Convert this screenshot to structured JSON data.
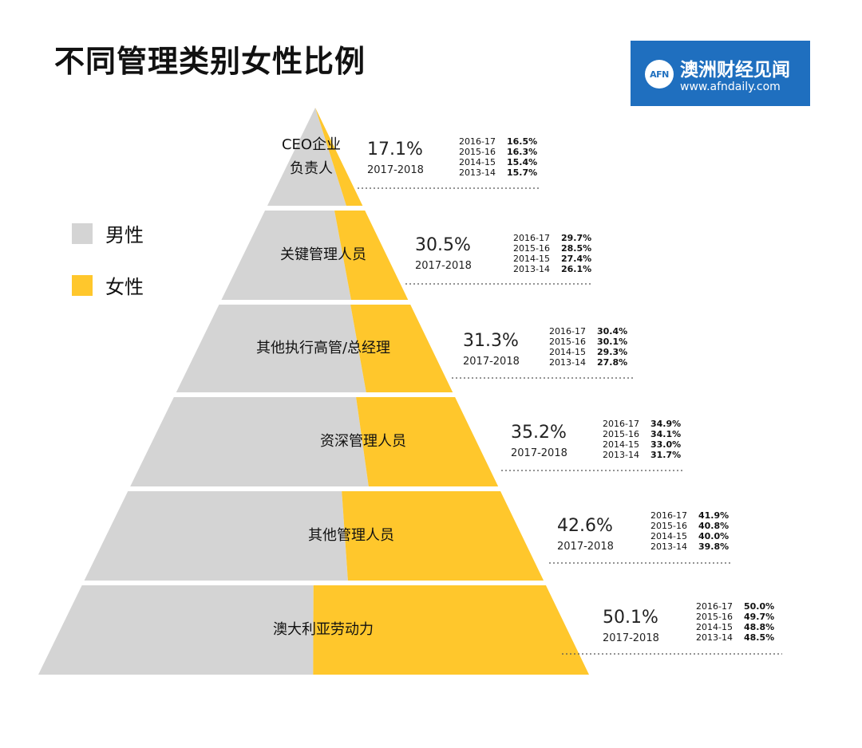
{
  "title": "不同管理类别女性比例",
  "logo": {
    "mark": "AFN",
    "name": "澳洲财经见闻",
    "url": "www.afndaily.com"
  },
  "colors": {
    "male": "#d4d4d4",
    "female": "#ffc72c"
  },
  "legend": [
    {
      "label": "男性",
      "color": "#d4d4d4"
    },
    {
      "label": "女性",
      "color": "#ffc72c"
    }
  ],
  "chart_data": {
    "type": "bar",
    "title": "不同管理类别女性比例",
    "series": [
      {
        "name": "女性",
        "values": [
          17.1,
          30.5,
          31.3,
          35.2,
          42.6,
          50.1
        ]
      }
    ],
    "current_year": "2017-2018",
    "levels": [
      {
        "label": "CEO企业\n负责人",
        "pct_label": "17.1%",
        "female_pct": 17.1,
        "year_label": "2017-2018",
        "history": [
          {
            "year": "2016-17",
            "value": "16.5%"
          },
          {
            "year": "2015-16",
            "value": "16.3%"
          },
          {
            "year": "2014-15",
            "value": "15.4%"
          },
          {
            "year": "2013-14",
            "value": "15.7%"
          }
        ]
      },
      {
        "label": "关键管理人员",
        "pct_label": "30.5%",
        "female_pct": 30.5,
        "year_label": "2017-2018",
        "history": [
          {
            "year": "2016-17",
            "value": "29.7%"
          },
          {
            "year": "2015-16",
            "value": "28.5%"
          },
          {
            "year": "2014-15",
            "value": "27.4%"
          },
          {
            "year": "2013-14",
            "value": "26.1%"
          }
        ]
      },
      {
        "label": "其他执行高管/总经理",
        "pct_label": "31.3%",
        "female_pct": 31.3,
        "year_label": "2017-2018",
        "history": [
          {
            "year": "2016-17",
            "value": "30.4%"
          },
          {
            "year": "2015-16",
            "value": "30.1%"
          },
          {
            "year": "2014-15",
            "value": "29.3%"
          },
          {
            "year": "2013-14",
            "value": "27.8%"
          }
        ]
      },
      {
        "label": "资深管理人员",
        "pct_label": "35.2%",
        "female_pct": 35.2,
        "year_label": "2017-2018",
        "history": [
          {
            "year": "2016-17",
            "value": "34.9%"
          },
          {
            "year": "2015-16",
            "value": "34.1%"
          },
          {
            "year": "2014-15",
            "value": "33.0%"
          },
          {
            "year": "2013-14",
            "value": "31.7%"
          }
        ]
      },
      {
        "label": "其他管理人员",
        "pct_label": "42.6%",
        "female_pct": 42.6,
        "year_label": "2017-2018",
        "history": [
          {
            "year": "2016-17",
            "value": "41.9%"
          },
          {
            "year": "2015-16",
            "value": "40.8%"
          },
          {
            "year": "2014-15",
            "value": "40.0%"
          },
          {
            "year": "2013-14",
            "value": "39.8%"
          }
        ]
      },
      {
        "label": "澳大利亚劳动力",
        "pct_label": "50.1%",
        "female_pct": 50.1,
        "year_label": "2017-2018",
        "history": [
          {
            "year": "2016-17",
            "value": "50.0%"
          },
          {
            "year": "2015-16",
            "value": "49.7%"
          },
          {
            "year": "2014-15",
            "value": "48.8%"
          },
          {
            "year": "2013-14",
            "value": "48.5%"
          }
        ]
      }
    ]
  }
}
